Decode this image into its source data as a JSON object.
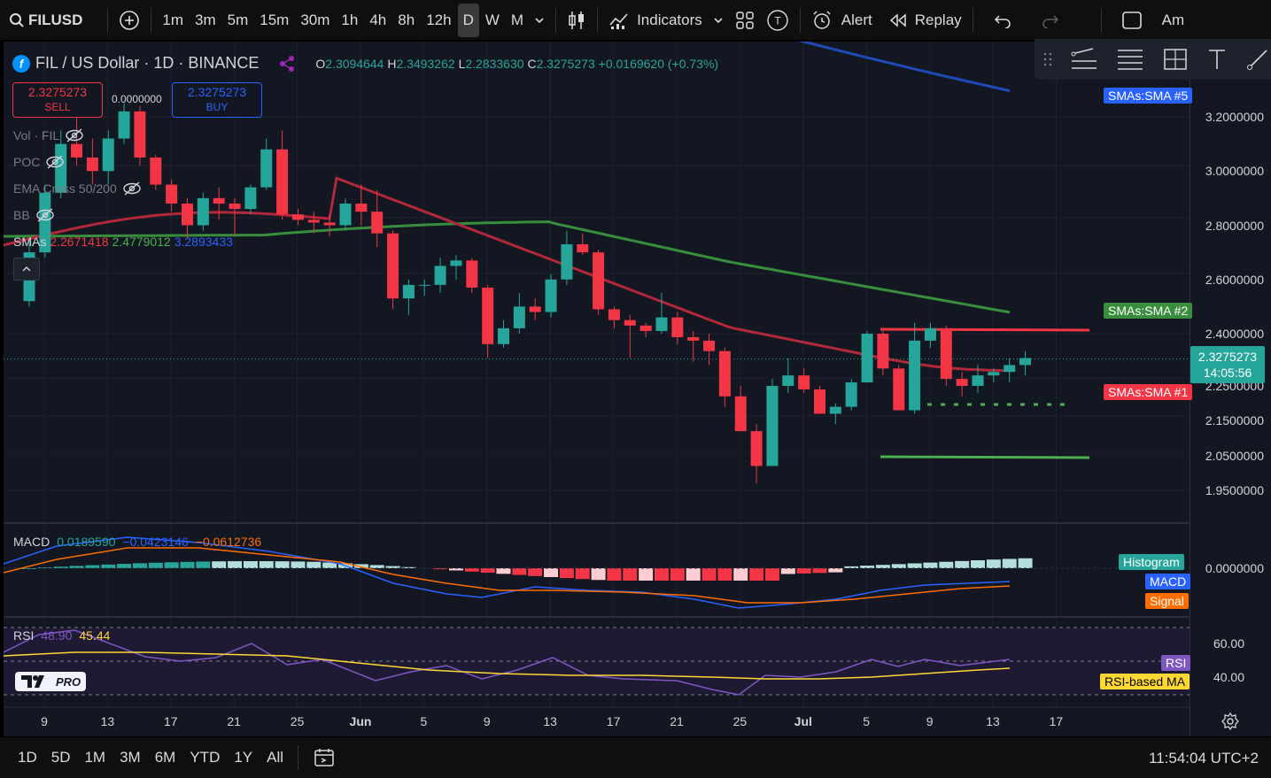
{
  "toolbar": {
    "symbol": "FILUSD",
    "intervals": [
      "1m",
      "3m",
      "5m",
      "15m",
      "30m",
      "1h",
      "4h",
      "8h",
      "12h",
      "D",
      "W",
      "M"
    ],
    "selected_interval": "D",
    "indicators_label": "Indicators",
    "alert_label": "Alert",
    "replay_label": "Replay",
    "account_label": "Am"
  },
  "header": {
    "title": "FIL / US Dollar · 1D · BINANCE",
    "open_label": "O",
    "open": "2.3094644",
    "high_label": "H",
    "high": "2.3493262",
    "low_label": "L",
    "low": "2.2833630",
    "close_label": "C",
    "close": "2.3275273",
    "change": "+0.0169620 (+0.73%)"
  },
  "trade": {
    "sell_price": "2.3275273",
    "sell_label": "SELL",
    "spread": "0.0000000",
    "buy_price": "2.3275273",
    "buy_label": "BUY"
  },
  "indicators": [
    {
      "label": "Vol · FIL"
    },
    {
      "label": "POC"
    },
    {
      "label": "EMA Cross 50/200"
    },
    {
      "label": "BB"
    }
  ],
  "smas_legend": {
    "label": "SMAs",
    "v1": "2.2671418",
    "v2": "2.4779012",
    "v3": "3.2893433"
  },
  "macd_legend": {
    "label": "MACD",
    "v1": "0.0189590",
    "v2": "−0.0423146",
    "v3": "−0.0612736"
  },
  "rsi_legend": {
    "label": "RSI",
    "v1": "48.90",
    "v2": "45.44"
  },
  "logo_text": "PRO",
  "price_scale": {
    "labels": [
      {
        "text": "3.2000000",
        "price": 3.2
      },
      {
        "text": "3.0000000",
        "price": 3.0
      },
      {
        "text": "2.8000000",
        "price": 2.8
      },
      {
        "text": "2.6000000",
        "price": 2.6
      },
      {
        "text": "2.4000000",
        "price": 2.4
      },
      {
        "text": "2.2500000",
        "price": 2.25
      },
      {
        "text": "2.1500000",
        "price": 2.15
      },
      {
        "text": "2.0500000",
        "price": 2.05
      },
      {
        "text": "1.9500000",
        "price": 1.95
      }
    ],
    "current_price": "2.3275273",
    "countdown": "14:05:56",
    "macd_zero": "0.0000000",
    "rsi_60": "60.00",
    "rsi_40": "40.00"
  },
  "tags": {
    "sma5": "SMAs:SMA #5",
    "sma2": "SMAs:SMA #2",
    "sma1": "SMAs:SMA #1",
    "histogram": "Histogram",
    "macd": "MACD",
    "signal": "Signal",
    "rsi": "RSI",
    "rsi_ma": "RSI-based MA"
  },
  "time_axis": [
    "9",
    "13",
    "17",
    "21",
    "25",
    "Jun",
    "5",
    "9",
    "13",
    "17",
    "21",
    "25",
    "Jul",
    "5",
    "9",
    "13",
    "17"
  ],
  "ranges": [
    "1D",
    "5D",
    "1M",
    "3M",
    "6M",
    "YTD",
    "1Y",
    "All"
  ],
  "clock": "11:54:04 UTC+2",
  "colors": {
    "up": "#26a69a",
    "down": "#f23645",
    "sma1": "#b2283a",
    "sma2": "#388e3c",
    "sma5": "#1e4bb8"
  },
  "chart_data": {
    "type": "candlestick",
    "candles_ohlc": [
      [
        2.52,
        2.75,
        2.5,
        2.7
      ],
      [
        2.7,
        2.95,
        2.68,
        2.92
      ],
      [
        2.92,
        3.15,
        2.9,
        3.1
      ],
      [
        3.1,
        3.25,
        3.02,
        3.05
      ],
      [
        3.05,
        3.12,
        2.95,
        3.0
      ],
      [
        3.0,
        3.15,
        2.95,
        3.12
      ],
      [
        3.12,
        3.25,
        3.1,
        3.22
      ],
      [
        3.22,
        3.24,
        3.02,
        3.05
      ],
      [
        3.05,
        3.06,
        2.93,
        2.95
      ],
      [
        2.95,
        2.97,
        2.85,
        2.88
      ],
      [
        2.88,
        2.9,
        2.75,
        2.8
      ],
      [
        2.8,
        2.92,
        2.78,
        2.9
      ],
      [
        2.9,
        2.94,
        2.82,
        2.88
      ],
      [
        2.88,
        2.9,
        2.76,
        2.86
      ],
      [
        2.86,
        2.95,
        2.84,
        2.94
      ],
      [
        2.94,
        3.12,
        2.93,
        3.08
      ],
      [
        3.08,
        3.15,
        2.82,
        2.84
      ],
      [
        2.84,
        2.86,
        2.8,
        2.82
      ],
      [
        2.82,
        2.85,
        2.77,
        2.81
      ],
      [
        2.81,
        2.84,
        2.76,
        2.8
      ],
      [
        2.8,
        2.9,
        2.78,
        2.88
      ],
      [
        2.88,
        2.95,
        2.8,
        2.85
      ],
      [
        2.85,
        2.93,
        2.72,
        2.77
      ],
      [
        2.77,
        2.78,
        2.49,
        2.53
      ],
      [
        2.53,
        2.6,
        2.47,
        2.58
      ],
      [
        2.58,
        2.6,
        2.54,
        2.58
      ],
      [
        2.58,
        2.68,
        2.55,
        2.65
      ],
      [
        2.65,
        2.69,
        2.6,
        2.67
      ],
      [
        2.67,
        2.68,
        2.55,
        2.57
      ],
      [
        2.57,
        2.58,
        2.33,
        2.37
      ],
      [
        2.37,
        2.45,
        2.36,
        2.42
      ],
      [
        2.42,
        2.55,
        2.4,
        2.5
      ],
      [
        2.5,
        2.53,
        2.45,
        2.48
      ],
      [
        2.48,
        2.62,
        2.46,
        2.6
      ],
      [
        2.6,
        2.78,
        2.58,
        2.73
      ],
      [
        2.73,
        2.77,
        2.69,
        2.7
      ],
      [
        2.7,
        2.71,
        2.47,
        2.49
      ],
      [
        2.49,
        2.5,
        2.42,
        2.45
      ],
      [
        2.45,
        2.47,
        2.33,
        2.43
      ],
      [
        2.43,
        2.44,
        2.39,
        2.41
      ],
      [
        2.41,
        2.55,
        2.4,
        2.46
      ],
      [
        2.46,
        2.48,
        2.37,
        2.39
      ],
      [
        2.39,
        2.41,
        2.32,
        2.38
      ],
      [
        2.38,
        2.4,
        2.31,
        2.35
      ],
      [
        2.35,
        2.36,
        2.19,
        2.22
      ],
      [
        2.22,
        2.25,
        2.12,
        2.12
      ],
      [
        2.12,
        2.14,
        1.97,
        2.02
      ],
      [
        2.02,
        2.27,
        2.03,
        2.25
      ],
      [
        2.25,
        2.33,
        2.23,
        2.28
      ],
      [
        2.28,
        2.3,
        2.23,
        2.24
      ],
      [
        2.24,
        2.25,
        2.17,
        2.17
      ],
      [
        2.17,
        2.2,
        2.14,
        2.19
      ],
      [
        2.19,
        2.27,
        2.18,
        2.26
      ],
      [
        2.26,
        2.41,
        2.26,
        2.4
      ],
      [
        2.4,
        2.41,
        2.28,
        2.3
      ],
      [
        2.3,
        2.31,
        2.18,
        2.18
      ],
      [
        2.18,
        2.44,
        2.17,
        2.38
      ],
      [
        2.38,
        2.44,
        2.36,
        2.42
      ],
      [
        2.42,
        2.43,
        2.25,
        2.27
      ],
      [
        2.27,
        2.29,
        2.22,
        2.25
      ],
      [
        2.25,
        2.31,
        2.23,
        2.28
      ],
      [
        2.28,
        2.3,
        2.26,
        2.29
      ],
      [
        2.29,
        2.33,
        2.26,
        2.31
      ],
      [
        2.31,
        2.35,
        2.28,
        2.33
      ]
    ]
  }
}
